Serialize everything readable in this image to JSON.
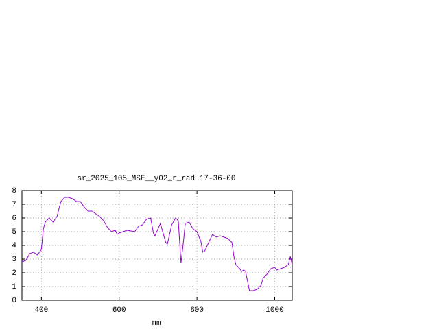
{
  "chart_data": {
    "type": "line",
    "title": "sr_2025_105_MSE__y02_r_rad 17-36-00",
    "x_label": "nm",
    "xlim": [
      350,
      1045
    ],
    "ylim": [
      0,
      8
    ],
    "xticks": [
      400,
      600,
      800,
      1000
    ],
    "yticks": [
      0,
      1,
      2,
      3,
      4,
      5,
      6,
      7,
      8
    ],
    "grid": true,
    "series": [
      {
        "color": "#9400d3",
        "x": [
          350,
          360,
          370,
          380,
          390,
          400,
          405,
          410,
          420,
          430,
          440,
          450,
          460,
          470,
          480,
          490,
          500,
          510,
          520,
          530,
          540,
          550,
          560,
          570,
          580,
          590,
          595,
          600,
          620,
          640,
          650,
          660,
          670,
          681,
          688,
          692,
          706,
          720,
          724,
          735,
          745,
          752,
          759,
          765,
          770,
          780,
          790,
          800,
          810,
          815,
          820,
          830,
          840,
          850,
          860,
          870,
          880,
          890,
          895,
          900,
          910,
          915,
          920,
          925,
          935,
          945,
          955,
          965,
          970,
          980,
          990,
          1000,
          1005,
          1015,
          1025,
          1035,
          1040,
          1045
        ],
        "values": [
          2.8,
          2.9,
          3.4,
          3.5,
          3.3,
          3.7,
          5.2,
          5.7,
          6.0,
          5.7,
          6.1,
          7.2,
          7.5,
          7.5,
          7.4,
          7.2,
          7.2,
          6.8,
          6.5,
          6.5,
          6.3,
          6.1,
          5.8,
          5.3,
          5.0,
          5.1,
          4.8,
          4.9,
          5.1,
          5.0,
          5.4,
          5.5,
          5.9,
          6.0,
          4.9,
          4.7,
          5.6,
          4.2,
          4.1,
          5.5,
          6.0,
          5.8,
          2.7,
          4.2,
          5.6,
          5.7,
          5.2,
          5.0,
          4.3,
          3.5,
          3.6,
          4.2,
          4.8,
          4.6,
          4.7,
          4.6,
          4.5,
          4.2,
          3.2,
          2.6,
          2.3,
          2.1,
          2.2,
          2.1,
          0.7,
          0.7,
          0.8,
          1.1,
          1.6,
          1.9,
          2.3,
          2.4,
          2.2,
          2.3,
          2.4,
          2.6,
          3.2,
          2.6
        ]
      }
    ]
  }
}
